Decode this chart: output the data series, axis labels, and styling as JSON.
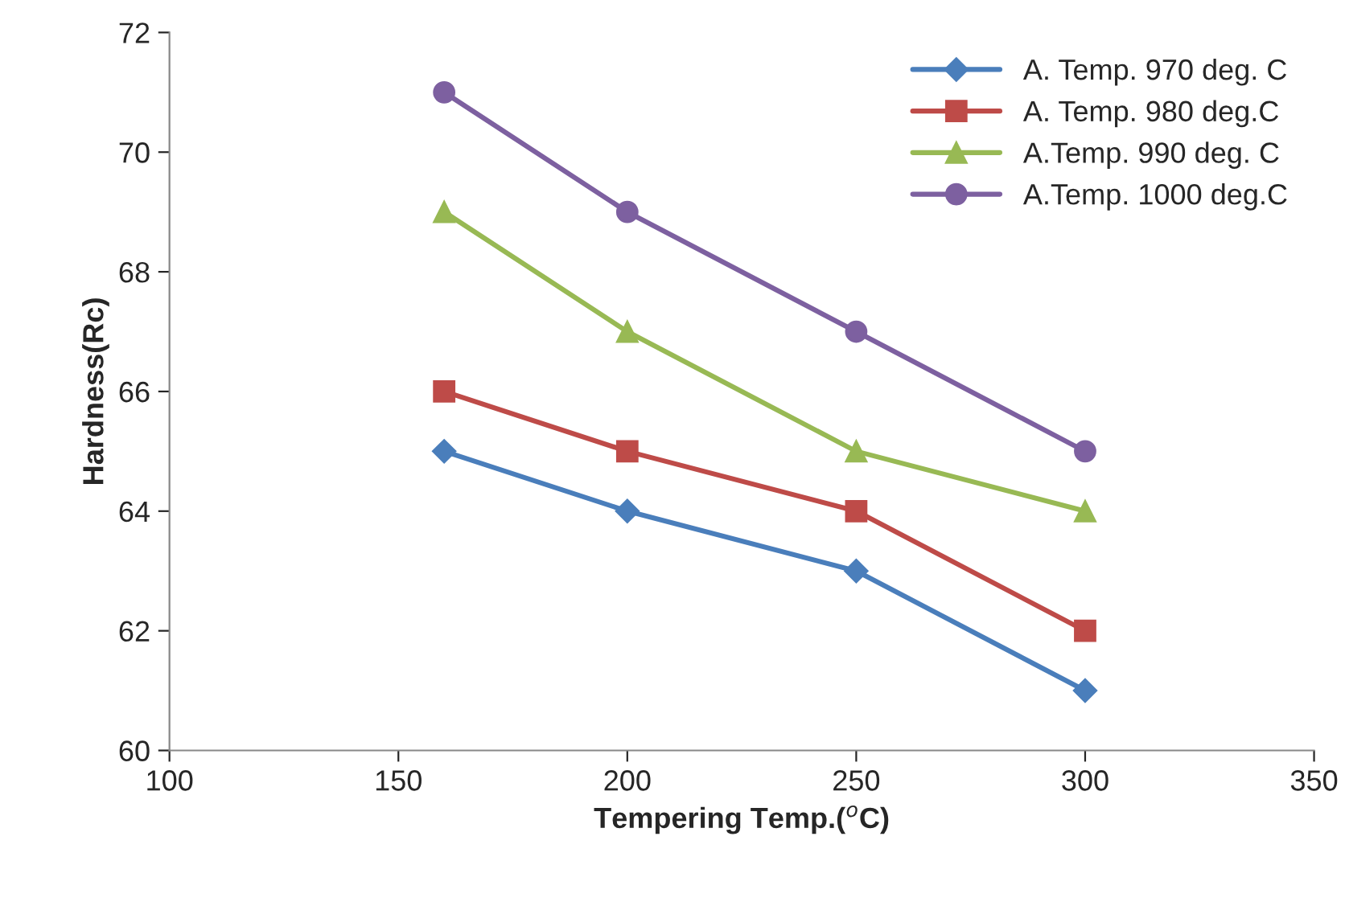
{
  "chart_data": {
    "type": "line",
    "xlabel": "Tempering Temp.($^{o}$C)",
    "ylabel": "Hardness(Rc)",
    "x": [
      160,
      200,
      250,
      300
    ],
    "series": [
      {
        "name": "A. Temp. 970 deg. C",
        "color": "#4a7ebb",
        "marker": "diamond",
        "values": [
          65,
          64,
          63,
          61
        ]
      },
      {
        "name": "A. Temp. 980 deg.C",
        "color": "#be4b48",
        "marker": "square",
        "values": [
          66,
          65,
          64,
          62
        ]
      },
      {
        "name": "A.Temp. 990 deg. C",
        "color": "#98b954",
        "marker": "triangle",
        "values": [
          69,
          67,
          65,
          64
        ]
      },
      {
        "name": "A.Temp. 1000 deg.C",
        "color": "#7d60a0",
        "marker": "circle",
        "values": [
          71,
          69,
          67,
          65
        ]
      }
    ],
    "xlim": [
      100,
      350
    ],
    "xticks": [
      100,
      150,
      200,
      250,
      300,
      350
    ],
    "ylim": [
      60,
      72
    ],
    "yticks": [
      60,
      62,
      64,
      66,
      68,
      70,
      72
    ],
    "grid": false,
    "legend": "top right",
    "line_style": "solid"
  }
}
